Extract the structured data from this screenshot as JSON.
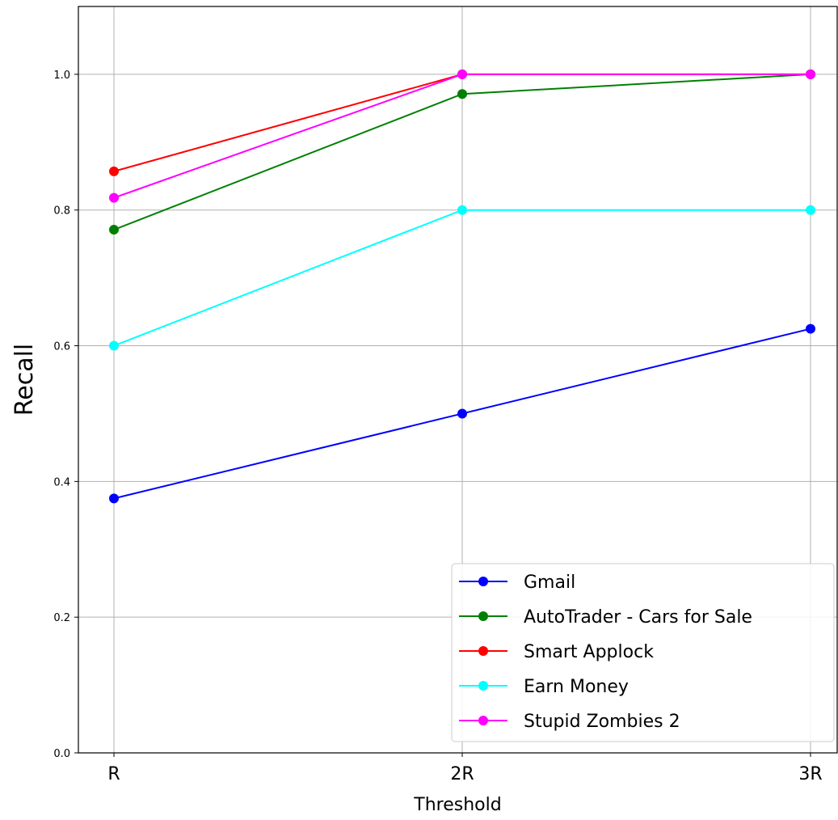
{
  "chart_data": {
    "type": "line",
    "title": "",
    "xlabel": "Threshold",
    "ylabel": "Recall",
    "categories": [
      "R",
      "2R",
      "3R"
    ],
    "ylim": [
      0.0,
      1.1
    ],
    "yticks": [
      0.0,
      0.2,
      0.4,
      0.6,
      0.8,
      1.0
    ],
    "ytick_labels": [
      "0.0",
      "0.2",
      "0.4",
      "0.6",
      "0.8",
      "1.0"
    ],
    "grid": true,
    "legend_position": "lower-right",
    "markers": "circle",
    "series": [
      {
        "name": "Gmail",
        "color": "#0000ff",
        "values": [
          0.375,
          0.5,
          0.625
        ]
      },
      {
        "name": "AutoTrader - Cars for Sale",
        "color": "#008000",
        "values": [
          0.771,
          0.971,
          1.0
        ]
      },
      {
        "name": "Smart Applock",
        "color": "#ff0000",
        "values": [
          0.857,
          1.0,
          1.0
        ]
      },
      {
        "name": "Earn Money",
        "color": "#00ffff",
        "values": [
          0.6,
          0.8,
          0.8
        ]
      },
      {
        "name": "Stupid Zombies 2",
        "color": "#ff00ff",
        "values": [
          0.818,
          1.0,
          1.0
        ]
      }
    ]
  }
}
